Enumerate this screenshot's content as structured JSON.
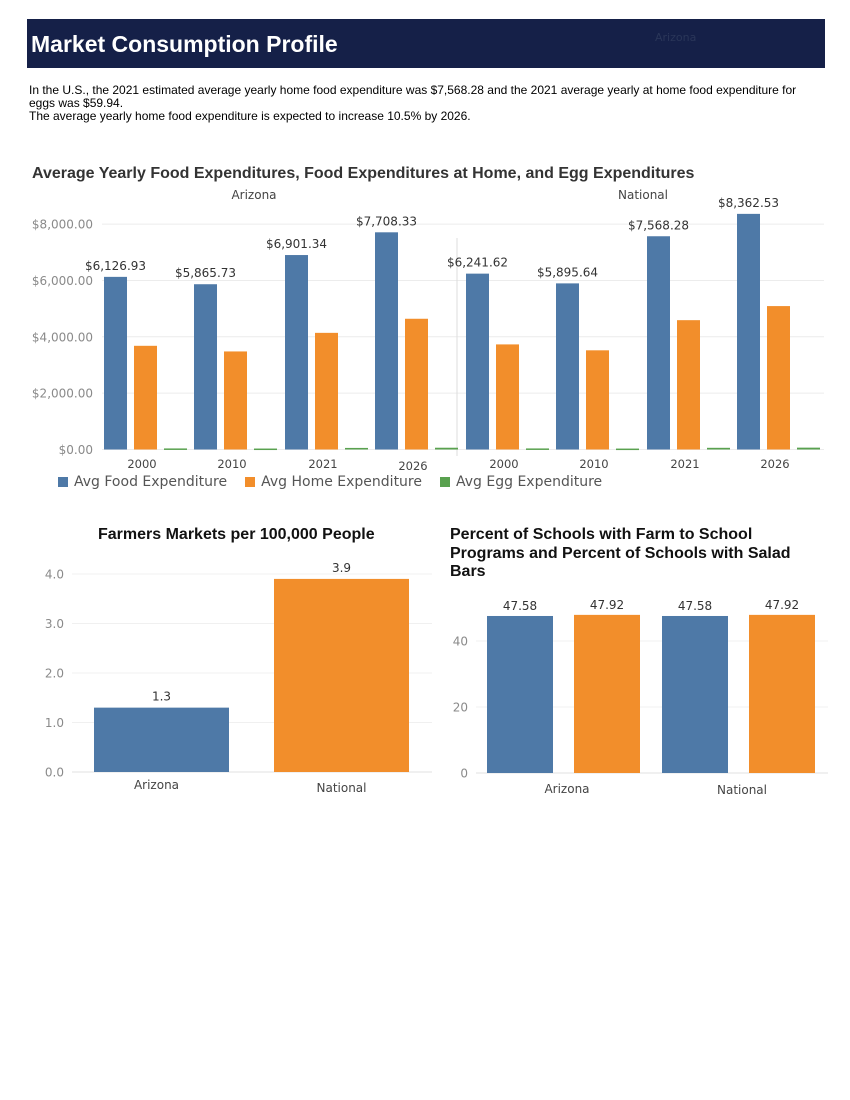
{
  "header": {
    "title": "Market Consumption Profile",
    "subtitle": "Arizona"
  },
  "summary": {
    "line1": "In the U.S., the 2021 estimated average yearly home food expenditure was $7,568.28 and the 2021 average yearly at home food expenditure for eggs was $59.94.",
    "line2": "The average yearly home food expenditure is expected to increase 10.5% by 2026."
  },
  "colors": {
    "food": "#4e79a7",
    "home": "#f28e2b",
    "egg": "#59a14f"
  },
  "chart_data": [
    {
      "type": "bar",
      "title": "Average Yearly Food Expenditures, Food Expenditures at Home, and Egg Expenditures",
      "y_tick_labels": [
        "$0.00",
        "$2,000.00",
        "$4,000.00",
        "$6,000.00",
        "$8,000.00"
      ],
      "y_ticks": [
        0,
        2000,
        4000,
        6000,
        8000
      ],
      "ylim": [
        0,
        8500
      ],
      "legend_position": "bottom-left",
      "series_names": [
        "Avg Food Expenditure",
        "Avg Home Expenditure",
        "Avg Egg Expenditure"
      ],
      "panels": [
        {
          "name": "Arizona",
          "categories": [
            "2000",
            "2010",
            "2021",
            "2026"
          ],
          "series": [
            {
              "name": "Avg Food Expenditure",
              "values": [
                6126.93,
                5865.73,
                6901.34,
                7708.33
              ],
              "labels": [
                "$6,126.93",
                "$5,865.73",
                "$6,901.34",
                "$7,708.33"
              ]
            },
            {
              "name": "Avg Home Expenditure",
              "values": [
                3680,
                3480,
                4140,
                4640
              ]
            },
            {
              "name": "Avg Egg Expenditure",
              "values": [
                38,
                34,
                56,
                63
              ]
            }
          ]
        },
        {
          "name": "National",
          "categories": [
            "2000",
            "2010",
            "2021",
            "2026"
          ],
          "series": [
            {
              "name": "Avg Food Expenditure",
              "values": [
                6241.62,
                5895.64,
                7568.28,
                8362.53
              ],
              "labels": [
                "$6,241.62",
                "$5,895.64",
                "$7,568.28",
                "$8,362.53"
              ]
            },
            {
              "name": "Avg Home Expenditure",
              "values": [
                3730,
                3520,
                4590,
                5090
              ]
            },
            {
              "name": "Avg Egg Expenditure",
              "values": [
                38,
                33,
                59.94,
                66
              ]
            }
          ]
        }
      ]
    },
    {
      "type": "bar",
      "title": "Farmers Markets per 100,000 People",
      "categories": [
        "Arizona",
        "National"
      ],
      "values": [
        1.3,
        3.9
      ],
      "labels": [
        "1.3",
        "3.9"
      ],
      "y_tick_labels": [
        "0.0",
        "1.0",
        "2.0",
        "3.0",
        "4.0"
      ],
      "y_ticks": [
        0,
        1,
        2,
        3,
        4
      ],
      "ylim": [
        0,
        4.1
      ]
    },
    {
      "type": "bar",
      "title": "Percent of Schools with Farm to School Programs and Percent of Schools with Salad Bars",
      "categories": [
        "Arizona",
        "National"
      ],
      "series": [
        {
          "values": [
            47.58,
            47.58
          ],
          "labels": [
            "47.58",
            "47.58"
          ]
        },
        {
          "values": [
            47.92,
            47.92
          ],
          "labels": [
            "47.92",
            "47.92"
          ]
        }
      ],
      "y_tick_labels": [
        "0",
        "20",
        "40"
      ],
      "y_ticks": [
        0,
        20,
        40
      ],
      "ylim": [
        0,
        50
      ]
    }
  ]
}
